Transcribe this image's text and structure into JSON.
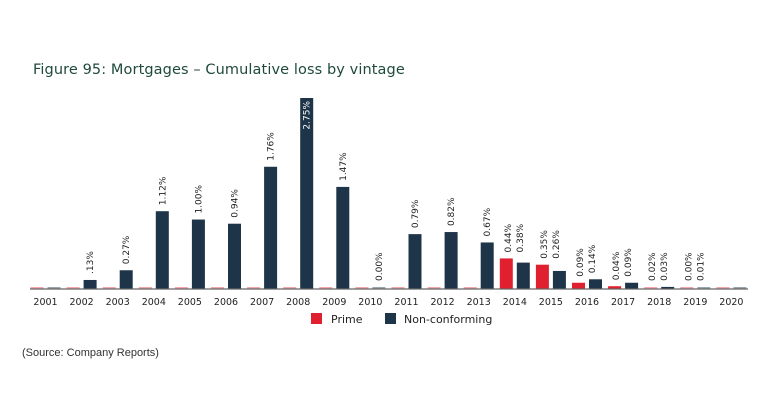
{
  "chart_data": {
    "type": "bar",
    "title": "Figure 95:  Mortgages – Cumulative loss by vintage",
    "xlabel": "",
    "ylabel": "",
    "ylim": [
      0,
      2.75
    ],
    "grid": false,
    "legend_position": "bottom-center",
    "categories": [
      "2001",
      "2002",
      "2003",
      "2004",
      "2005",
      "2006",
      "2007",
      "2008",
      "2009",
      "2010",
      "2011",
      "2012",
      "2013",
      "2014",
      "2015",
      "2016",
      "2017",
      "2018",
      "2019",
      "2020"
    ],
    "series": [
      {
        "name": "Prime",
        "color": "#e0202f",
        "values": [
          0,
          0,
          0,
          0,
          0,
          0,
          0,
          0,
          0,
          0,
          0,
          0,
          0,
          0.44,
          0.35,
          0.09,
          0.04,
          0.02,
          0.0,
          0
        ],
        "labels": [
          "",
          "",
          "",
          "",
          "",
          "",
          "",
          "",
          "",
          "",
          "",
          "",
          "",
          "0.44%",
          "0.35%",
          "0.09%",
          "0.04%",
          "0.02%",
          "0.00%",
          ""
        ]
      },
      {
        "name": "Non-conforming",
        "color": "#1e3448",
        "values": [
          0,
          0.13,
          0.27,
          1.12,
          1.0,
          0.94,
          1.76,
          2.75,
          1.47,
          0.0,
          0.79,
          0.82,
          0.67,
          0.38,
          0.26,
          0.14,
          0.09,
          0.03,
          0.01,
          0
        ],
        "labels": [
          "",
          ".13%",
          "0.27%",
          "1.12%",
          "1.00%",
          "0.94%",
          "1.76%",
          "2.75%",
          "1.47%",
          "0.00%",
          "0.79%",
          "0.82%",
          "0.67%",
          "0.38%",
          "0.26%",
          "0.14%",
          "0.09%",
          "0.03%",
          "0.01%",
          ""
        ]
      }
    ]
  },
  "figure": {
    "title": "Figure 95:  Mortgages – Cumulative loss by vintage",
    "source": "(Source: Company Reports)"
  },
  "legend": {
    "items": [
      {
        "label": "Prime",
        "color": "#e0202f"
      },
      {
        "label": "Non-conforming",
        "color": "#1e3448"
      }
    ]
  },
  "colors": {
    "prime": "#e0202f",
    "prime_stub": "#f3a6ab",
    "nonconf": "#1e3448",
    "nonconf_stub": "#9aa5ae",
    "axis": "#666666",
    "title": "#1f4a3c"
  }
}
